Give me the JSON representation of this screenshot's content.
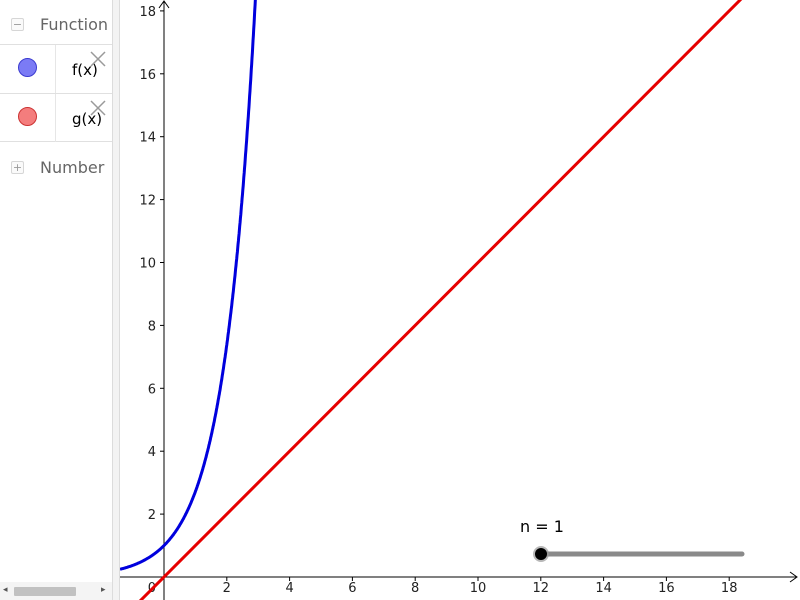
{
  "algebra": {
    "groups": [
      {
        "toggle": "−",
        "label": "Function"
      },
      {
        "toggle": "+",
        "label": "Number"
      }
    ],
    "rows": [
      {
        "definition": "f(x)",
        "color": "#7b7bf5",
        "border": "#3b3bd0"
      },
      {
        "definition": "g(x)",
        "color": "#f47d7d",
        "border": "#cc3333"
      }
    ],
    "scroll": {
      "left_arrow": "◂",
      "right_arrow": "▸"
    }
  },
  "graphics": {
    "x_ticks": [
      "2",
      "4",
      "6",
      "8",
      "10",
      "12",
      "14",
      "16",
      "18"
    ],
    "y_ticks": [
      "2",
      "4",
      "6",
      "8",
      "10",
      "12",
      "14",
      "16",
      "18"
    ],
    "origin_label": "0",
    "functions": [
      {
        "name": "f",
        "color": "#0000dd"
      },
      {
        "name": "g",
        "color": "#e60000"
      }
    ],
    "slider": {
      "label": "n = 1",
      "value": 1,
      "min": 1,
      "max": 20
    }
  }
}
